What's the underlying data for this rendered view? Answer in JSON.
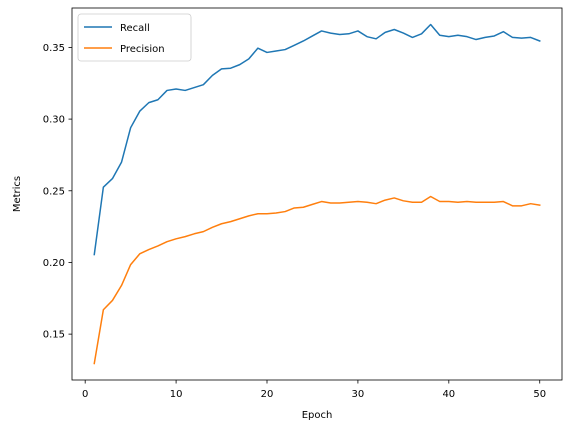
{
  "chart_data": {
    "type": "line",
    "xlabel": "Epoch",
    "ylabel": "Metrics",
    "xlim": [
      -1.45,
      52.45
    ],
    "ylim": [
      0.118,
      0.3775
    ],
    "xticks": [
      0,
      10,
      20,
      30,
      40,
      50
    ],
    "yticks": [
      0.15,
      0.2,
      0.25,
      0.3,
      0.35
    ],
    "ytick_labels": [
      "0.15",
      "0.20",
      "0.25",
      "0.30",
      "0.35"
    ],
    "grid": false,
    "legend_position": "top-left",
    "x": [
      1,
      2,
      3,
      4,
      5,
      6,
      7,
      8,
      9,
      10,
      11,
      12,
      13,
      14,
      15,
      16,
      17,
      18,
      19,
      20,
      21,
      22,
      23,
      24,
      25,
      26,
      27,
      28,
      29,
      30,
      31,
      32,
      33,
      34,
      35,
      36,
      37,
      38,
      39,
      40,
      41,
      42,
      43,
      44,
      45,
      46,
      47,
      48,
      49,
      50
    ],
    "series": [
      {
        "name": "Recall",
        "color": "#1f77b4",
        "values": [
          0.2055,
          0.2525,
          0.2585,
          0.27,
          0.294,
          0.3055,
          0.3115,
          0.3135,
          0.32,
          0.321,
          0.32,
          0.322,
          0.324,
          0.3305,
          0.335,
          0.3355,
          0.338,
          0.342,
          0.3495,
          0.3465,
          0.3475,
          0.3485,
          0.3515,
          0.3545,
          0.358,
          0.3615,
          0.36,
          0.359,
          0.3595,
          0.3615,
          0.3575,
          0.356,
          0.3605,
          0.3625,
          0.36,
          0.357,
          0.3595,
          0.366,
          0.3585,
          0.3575,
          0.3585,
          0.3575,
          0.3555,
          0.357,
          0.358,
          0.361,
          0.357,
          0.3565,
          0.357,
          0.3545
        ]
      },
      {
        "name": "Precision",
        "color": "#ff7f0e",
        "values": [
          0.1295,
          0.167,
          0.1735,
          0.184,
          0.1985,
          0.206,
          0.209,
          0.2115,
          0.2145,
          0.2165,
          0.218,
          0.22,
          0.2215,
          0.2245,
          0.227,
          0.2285,
          0.2305,
          0.2325,
          0.234,
          0.234,
          0.2345,
          0.2355,
          0.238,
          0.2385,
          0.2405,
          0.2425,
          0.2415,
          0.2415,
          0.242,
          0.2425,
          0.242,
          0.241,
          0.2435,
          0.245,
          0.243,
          0.242,
          0.242,
          0.246,
          0.2425,
          0.2425,
          0.242,
          0.2425,
          0.242,
          0.242,
          0.242,
          0.2425,
          0.2395,
          0.2395,
          0.241,
          0.24
        ]
      }
    ]
  }
}
